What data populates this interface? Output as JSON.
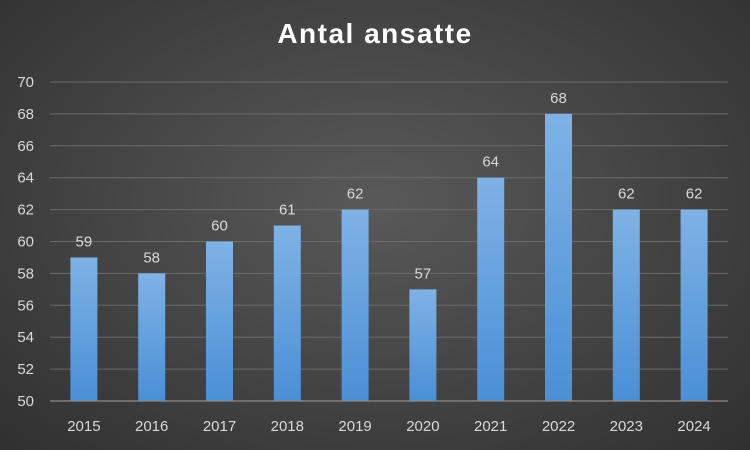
{
  "chart_data": {
    "type": "bar",
    "title": "Antal ansatte",
    "xlabel": "",
    "ylabel": "",
    "categories": [
      "2015",
      "2016",
      "2017",
      "2018",
      "2019",
      "2020",
      "2021",
      "2022",
      "2023",
      "2024"
    ],
    "values": [
      59,
      58,
      60,
      61,
      62,
      57,
      64,
      68,
      62,
      62
    ],
    "ylim": [
      50,
      70
    ],
    "yticks": [
      50,
      52,
      54,
      56,
      58,
      60,
      62,
      64,
      66,
      68,
      70
    ],
    "grid": true,
    "legend": "none",
    "data_labels": true,
    "colors": {
      "bar_top": "#7fb2e6",
      "bar_bottom": "#4a8fd6",
      "background": "#474747",
      "text": "#d9d9d9",
      "title": "#ffffff"
    }
  }
}
